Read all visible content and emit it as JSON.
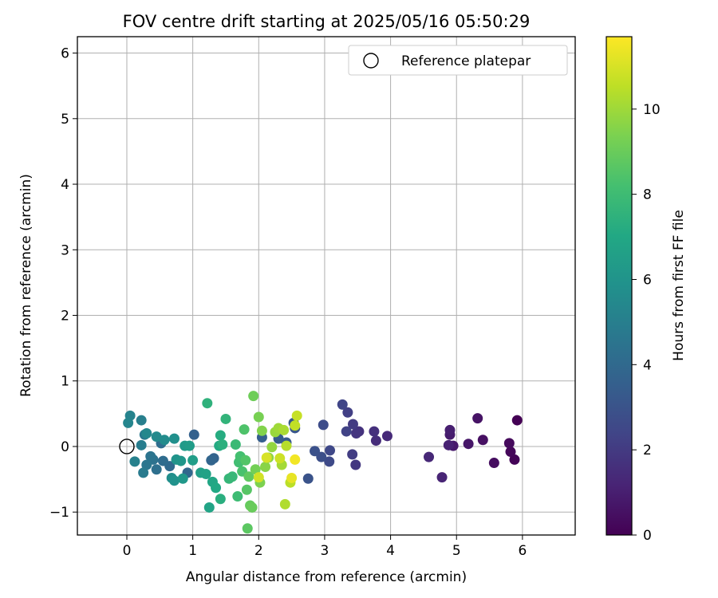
{
  "chart_data": {
    "type": "scatter",
    "title": "FOV centre drift starting at 2025/05/16 05:50:29",
    "xlabel": "Angular distance from reference (arcmin)",
    "ylabel": "Rotation from reference (arcmin)",
    "xlim": [
      -0.75,
      6.8
    ],
    "ylim": [
      -1.35,
      6.25
    ],
    "xticks": [
      0,
      1,
      2,
      3,
      4,
      5,
      6
    ],
    "yticks": [
      -1,
      0,
      1,
      2,
      3,
      4,
      5,
      6
    ],
    "grid": true,
    "legend": {
      "placement": "top-right",
      "entries": [
        "Reference platepar"
      ]
    },
    "reference_point": {
      "x": 0,
      "y": 0
    },
    "colorbar": {
      "label": "Hours from first FF file",
      "colormap": "viridis",
      "range": [
        0,
        11.7
      ],
      "ticks": [
        0,
        2,
        4,
        6,
        8,
        10
      ]
    },
    "points": [
      {
        "x": 5.92,
        "y": 0.4,
        "c": 0.0
      },
      {
        "x": 5.88,
        "y": -0.2,
        "c": 0.1
      },
      {
        "x": 5.82,
        "y": -0.08,
        "c": 0.2
      },
      {
        "x": 5.8,
        "y": 0.05,
        "c": 0.3
      },
      {
        "x": 5.57,
        "y": -0.25,
        "c": 0.4
      },
      {
        "x": 5.4,
        "y": 0.1,
        "c": 0.5
      },
      {
        "x": 5.32,
        "y": 0.43,
        "c": 0.6
      },
      {
        "x": 5.18,
        "y": 0.04,
        "c": 0.7
      },
      {
        "x": 4.95,
        "y": 0.01,
        "c": 0.8
      },
      {
        "x": 4.9,
        "y": 0.18,
        "c": 0.9
      },
      {
        "x": 4.9,
        "y": 0.25,
        "c": 1.0
      },
      {
        "x": 4.88,
        "y": 0.02,
        "c": 1.1
      },
      {
        "x": 4.78,
        "y": -0.47,
        "c": 1.2
      },
      {
        "x": 4.58,
        "y": -0.16,
        "c": 1.3
      },
      {
        "x": 3.95,
        "y": 0.16,
        "c": 1.4
      },
      {
        "x": 3.78,
        "y": 0.09,
        "c": 1.5
      },
      {
        "x": 3.75,
        "y": 0.23,
        "c": 1.6
      },
      {
        "x": 3.52,
        "y": 0.23,
        "c": 1.7
      },
      {
        "x": 3.48,
        "y": 0.2,
        "c": 1.8
      },
      {
        "x": 3.47,
        "y": -0.28,
        "c": 1.9
      },
      {
        "x": 3.43,
        "y": 0.34,
        "c": 2.0
      },
      {
        "x": 3.42,
        "y": -0.12,
        "c": 2.1
      },
      {
        "x": 3.35,
        "y": 0.52,
        "c": 2.2
      },
      {
        "x": 3.33,
        "y": 0.23,
        "c": 2.3
      },
      {
        "x": 3.27,
        "y": 0.64,
        "c": 2.4
      },
      {
        "x": 3.08,
        "y": -0.06,
        "c": 2.5
      },
      {
        "x": 3.07,
        "y": -0.23,
        "c": 2.6
      },
      {
        "x": 2.98,
        "y": 0.33,
        "c": 2.7
      },
      {
        "x": 2.95,
        "y": -0.16,
        "c": 2.8
      },
      {
        "x": 2.85,
        "y": -0.07,
        "c": 2.9
      },
      {
        "x": 2.75,
        "y": -0.49,
        "c": 3.0
      },
      {
        "x": 2.55,
        "y": 0.28,
        "c": 3.1
      },
      {
        "x": 2.53,
        "y": 0.36,
        "c": 3.2
      },
      {
        "x": 2.42,
        "y": 0.06,
        "c": 3.3
      },
      {
        "x": 2.3,
        "y": 0.12,
        "c": 3.4
      },
      {
        "x": 2.05,
        "y": 0.14,
        "c": 3.5
      },
      {
        "x": 1.02,
        "y": 0.18,
        "c": 3.6
      },
      {
        "x": 1.32,
        "y": -0.18,
        "c": 3.7
      },
      {
        "x": 1.28,
        "y": -0.21,
        "c": 3.8
      },
      {
        "x": 0.92,
        "y": -0.4,
        "c": 3.9
      },
      {
        "x": 0.65,
        "y": -0.3,
        "c": 4.0
      },
      {
        "x": 0.55,
        "y": -0.22,
        "c": 4.1
      },
      {
        "x": 0.52,
        "y": 0.05,
        "c": 4.2
      },
      {
        "x": 0.45,
        "y": -0.35,
        "c": 4.3
      },
      {
        "x": 0.4,
        "y": -0.2,
        "c": 4.4
      },
      {
        "x": 0.36,
        "y": -0.15,
        "c": 4.5
      },
      {
        "x": 0.3,
        "y": -0.28,
        "c": 4.6
      },
      {
        "x": 0.27,
        "y": 0.18,
        "c": 4.7
      },
      {
        "x": 0.25,
        "y": -0.4,
        "c": 4.8
      },
      {
        "x": 0.22,
        "y": 0.02,
        "c": 4.9
      },
      {
        "x": 0.22,
        "y": 0.4,
        "c": 5.0
      },
      {
        "x": 0.12,
        "y": -0.23,
        "c": 5.1
      },
      {
        "x": 0.05,
        "y": 0.47,
        "c": 5.2
      },
      {
        "x": 0.02,
        "y": 0.36,
        "c": 5.3
      },
      {
        "x": 0.3,
        "y": 0.2,
        "c": 5.4
      },
      {
        "x": 0.45,
        "y": 0.15,
        "c": 5.5
      },
      {
        "x": 0.57,
        "y": 0.1,
        "c": 5.6
      },
      {
        "x": 0.68,
        "y": -0.48,
        "c": 5.7
      },
      {
        "x": 0.72,
        "y": 0.12,
        "c": 5.8
      },
      {
        "x": 0.72,
        "y": -0.52,
        "c": 5.9
      },
      {
        "x": 0.75,
        "y": -0.2,
        "c": 6.0
      },
      {
        "x": 0.82,
        "y": -0.22,
        "c": 6.1
      },
      {
        "x": 0.85,
        "y": -0.49,
        "c": 6.2
      },
      {
        "x": 0.88,
        "y": 0.01,
        "c": 6.3
      },
      {
        "x": 0.95,
        "y": 0.01,
        "c": 6.4
      },
      {
        "x": 1.0,
        "y": -0.21,
        "c": 6.5
      },
      {
        "x": 1.12,
        "y": -0.4,
        "c": 6.6
      },
      {
        "x": 1.2,
        "y": -0.42,
        "c": 6.7
      },
      {
        "x": 1.25,
        "y": -0.93,
        "c": 6.8
      },
      {
        "x": 1.3,
        "y": -0.54,
        "c": 6.9
      },
      {
        "x": 1.35,
        "y": -0.63,
        "c": 7.0
      },
      {
        "x": 1.4,
        "y": 0.01,
        "c": 7.1
      },
      {
        "x": 1.42,
        "y": 0.17,
        "c": 7.2
      },
      {
        "x": 1.42,
        "y": -0.8,
        "c": 7.3
      },
      {
        "x": 1.45,
        "y": 0.03,
        "c": 7.4
      },
      {
        "x": 1.22,
        "y": 0.66,
        "c": 7.5
      },
      {
        "x": 1.5,
        "y": 0.42,
        "c": 7.6
      },
      {
        "x": 1.55,
        "y": -0.49,
        "c": 7.7
      },
      {
        "x": 1.6,
        "y": -0.46,
        "c": 7.8
      },
      {
        "x": 1.65,
        "y": 0.03,
        "c": 7.9
      },
      {
        "x": 1.68,
        "y": -0.76,
        "c": 8.0
      },
      {
        "x": 1.7,
        "y": -0.24,
        "c": 8.1
      },
      {
        "x": 1.72,
        "y": -0.15,
        "c": 8.2
      },
      {
        "x": 1.75,
        "y": -0.38,
        "c": 8.3
      },
      {
        "x": 1.78,
        "y": 0.26,
        "c": 8.4
      },
      {
        "x": 1.8,
        "y": -0.21,
        "c": 8.5
      },
      {
        "x": 1.82,
        "y": -0.66,
        "c": 8.6
      },
      {
        "x": 1.83,
        "y": -1.25,
        "c": 8.7
      },
      {
        "x": 1.85,
        "y": -0.46,
        "c": 8.8
      },
      {
        "x": 1.87,
        "y": -0.9,
        "c": 8.9
      },
      {
        "x": 1.9,
        "y": -0.93,
        "c": 9.0
      },
      {
        "x": 1.92,
        "y": 0.77,
        "c": 9.1
      },
      {
        "x": 1.95,
        "y": -0.35,
        "c": 9.2
      },
      {
        "x": 2.0,
        "y": 0.45,
        "c": 9.3
      },
      {
        "x": 2.02,
        "y": -0.55,
        "c": 9.4
      },
      {
        "x": 2.05,
        "y": 0.24,
        "c": 9.5
      },
      {
        "x": 2.1,
        "y": -0.31,
        "c": 9.6
      },
      {
        "x": 2.15,
        "y": -0.17,
        "c": 9.7
      },
      {
        "x": 2.2,
        "y": -0.01,
        "c": 9.8
      },
      {
        "x": 2.25,
        "y": 0.22,
        "c": 9.9
      },
      {
        "x": 2.3,
        "y": 0.28,
        "c": 10.0
      },
      {
        "x": 2.35,
        "y": -0.28,
        "c": 10.1
      },
      {
        "x": 2.38,
        "y": 0.25,
        "c": 10.2
      },
      {
        "x": 2.4,
        "y": -0.88,
        "c": 10.3
      },
      {
        "x": 2.42,
        "y": 0.01,
        "c": 10.4
      },
      {
        "x": 2.48,
        "y": -0.55,
        "c": 10.5
      },
      {
        "x": 2.55,
        "y": 0.32,
        "c": 10.6
      },
      {
        "x": 2.58,
        "y": 0.47,
        "c": 10.7
      },
      {
        "x": 2.32,
        "y": -0.18,
        "c": 10.8
      },
      {
        "x": 2.0,
        "y": -0.47,
        "c": 10.9
      },
      {
        "x": 2.12,
        "y": -0.17,
        "c": 11.0
      },
      {
        "x": 2.5,
        "y": -0.48,
        "c": 11.3
      },
      {
        "x": 2.55,
        "y": -0.2,
        "c": 11.5
      }
    ]
  }
}
